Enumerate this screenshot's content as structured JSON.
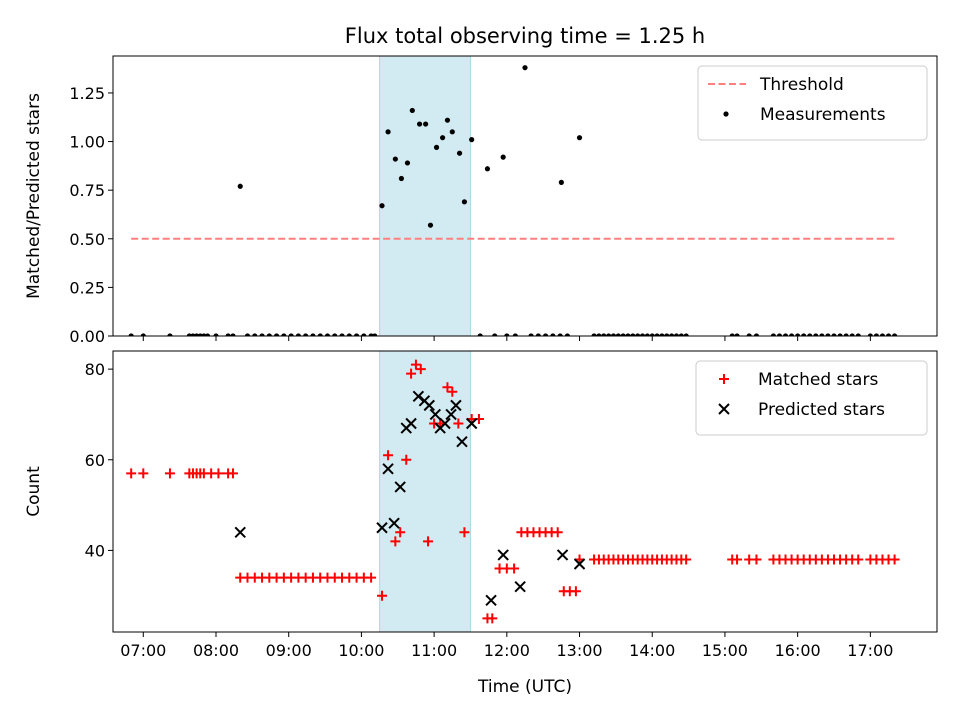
{
  "chart_data": [
    {
      "type": "scatter",
      "title": "Flux total observing time = 1.25 h",
      "xlabel": "",
      "ylabel": "Matched/Predicted stars",
      "ylim": [
        0,
        1.44
      ],
      "xlim": [
        "06:35",
        "17:55"
      ],
      "yticks": [
        0.0,
        0.25,
        0.5,
        0.75,
        1.0,
        1.25
      ],
      "ytick_labels": [
        "0.00",
        "0.25",
        "0.50",
        "0.75",
        "1.00",
        "1.25"
      ],
      "shaded_span": [
        "10:15",
        "11:30"
      ],
      "shaded_color": "#add8e6",
      "legend_position": "upper-right",
      "series": [
        {
          "name": "Threshold",
          "style": "dashed-line",
          "color": "#ff7f7f",
          "x": [
            "06:50",
            "17:20"
          ],
          "y": [
            0.5,
            0.5
          ]
        },
        {
          "name": "Measurements",
          "style": "dot",
          "color": "#000000",
          "points": [
            [
              "06:50",
              0
            ],
            [
              "07:00",
              0
            ],
            [
              "07:22",
              0
            ],
            [
              "07:38",
              0
            ],
            [
              "07:41",
              0
            ],
            [
              "07:44",
              0
            ],
            [
              "07:47",
              0
            ],
            [
              "07:50",
              0
            ],
            [
              "07:53",
              0
            ],
            [
              "08:00",
              0
            ],
            [
              "08:10",
              0
            ],
            [
              "08:14",
              0
            ],
            [
              "08:20",
              0.77
            ],
            [
              "08:26",
              0
            ],
            [
              "08:32",
              0
            ],
            [
              "08:38",
              0
            ],
            [
              "08:44",
              0
            ],
            [
              "08:50",
              0
            ],
            [
              "08:56",
              0
            ],
            [
              "09:02",
              0
            ],
            [
              "09:08",
              0
            ],
            [
              "09:14",
              0
            ],
            [
              "09:20",
              0
            ],
            [
              "09:26",
              0
            ],
            [
              "09:32",
              0
            ],
            [
              "09:38",
              0
            ],
            [
              "09:44",
              0
            ],
            [
              "09:50",
              0
            ],
            [
              "09:56",
              0
            ],
            [
              "10:02",
              0
            ],
            [
              "10:08",
              0
            ],
            [
              "10:11",
              0
            ],
            [
              "10:17",
              0.67
            ],
            [
              "10:22",
              1.05
            ],
            [
              "10:28",
              0.91
            ],
            [
              "10:33",
              0.81
            ],
            [
              "10:38",
              0.89
            ],
            [
              "10:42",
              1.16
            ],
            [
              "10:48",
              1.09
            ],
            [
              "10:53",
              1.09
            ],
            [
              "10:57",
              0.57
            ],
            [
              "11:02",
              0.97
            ],
            [
              "11:07",
              1.02
            ],
            [
              "11:11",
              1.11
            ],
            [
              "11:15",
              1.05
            ],
            [
              "11:21",
              0.94
            ],
            [
              "11:25",
              0.69
            ],
            [
              "11:31",
              1.01
            ],
            [
              "11:44",
              0.86
            ],
            [
              "11:57",
              0.92
            ],
            [
              "12:15",
              1.38
            ],
            [
              "12:45",
              0.79
            ],
            [
              "13:00",
              1.02
            ],
            [
              "11:38",
              0
            ],
            [
              "11:50",
              0
            ],
            [
              "12:00",
              0
            ],
            [
              "12:07",
              0
            ],
            [
              "12:20",
              0
            ],
            [
              "12:26",
              0
            ],
            [
              "12:32",
              0
            ],
            [
              "12:38",
              0
            ],
            [
              "12:44",
              0
            ],
            [
              "12:50",
              0
            ],
            [
              "13:12",
              0
            ],
            [
              "13:16",
              0
            ],
            [
              "13:20",
              0
            ],
            [
              "13:24",
              0
            ],
            [
              "13:28",
              0
            ],
            [
              "13:32",
              0
            ],
            [
              "13:36",
              0
            ],
            [
              "13:40",
              0
            ],
            [
              "13:44",
              0
            ],
            [
              "13:48",
              0
            ],
            [
              "13:52",
              0
            ],
            [
              "13:56",
              0
            ],
            [
              "14:00",
              0
            ],
            [
              "14:04",
              0
            ],
            [
              "14:08",
              0
            ],
            [
              "14:12",
              0
            ],
            [
              "14:16",
              0
            ],
            [
              "14:20",
              0
            ],
            [
              "14:24",
              0
            ],
            [
              "14:28",
              0
            ],
            [
              "15:06",
              0
            ],
            [
              "15:10",
              0
            ],
            [
              "15:20",
              0
            ],
            [
              "15:26",
              0
            ],
            [
              "15:40",
              0
            ],
            [
              "15:45",
              0
            ],
            [
              "15:50",
              0
            ],
            [
              "15:55",
              0
            ],
            [
              "16:00",
              0
            ],
            [
              "16:05",
              0
            ],
            [
              "16:10",
              0
            ],
            [
              "16:15",
              0
            ],
            [
              "16:20",
              0
            ],
            [
              "16:25",
              0
            ],
            [
              "16:30",
              0
            ],
            [
              "16:35",
              0
            ],
            [
              "16:40",
              0
            ],
            [
              "16:45",
              0
            ],
            [
              "16:50",
              0
            ],
            [
              "17:00",
              0
            ],
            [
              "17:05",
              0
            ],
            [
              "17:10",
              0
            ],
            [
              "17:15",
              0
            ],
            [
              "17:20",
              0
            ]
          ]
        }
      ]
    },
    {
      "type": "scatter",
      "title": "",
      "xlabel": "Time (UTC)",
      "ylabel": "Count",
      "ylim": [
        22,
        84
      ],
      "xlim": [
        "06:35",
        "17:55"
      ],
      "yticks": [
        40,
        60,
        80
      ],
      "ytick_labels": [
        "40",
        "60",
        "80"
      ],
      "xticks": [
        "07:00",
        "08:00",
        "09:00",
        "10:00",
        "11:00",
        "12:00",
        "13:00",
        "14:00",
        "15:00",
        "16:00",
        "17:00"
      ],
      "xtick_labels": [
        "07:00",
        "08:00",
        "09:00",
        "10:00",
        "11:00",
        "12:00",
        "13:00",
        "14:00",
        "15:00",
        "16:00",
        "17:00"
      ],
      "shaded_span": [
        "10:15",
        "11:30"
      ],
      "shaded_color": "#add8e6",
      "legend_position": "upper-right",
      "series": [
        {
          "name": "Matched stars",
          "style": "plus",
          "color": "#ff0000",
          "points": [
            [
              "06:50",
              57
            ],
            [
              "07:00",
              57
            ],
            [
              "07:22",
              57
            ],
            [
              "07:38",
              57
            ],
            [
              "07:41",
              57
            ],
            [
              "07:44",
              57
            ],
            [
              "07:47",
              57
            ],
            [
              "07:50",
              57
            ],
            [
              "07:56",
              57
            ],
            [
              "08:02",
              57
            ],
            [
              "08:10",
              57
            ],
            [
              "08:14",
              57
            ],
            [
              "08:20",
              34
            ],
            [
              "08:26",
              34
            ],
            [
              "08:32",
              34
            ],
            [
              "08:38",
              34
            ],
            [
              "08:44",
              34
            ],
            [
              "08:50",
              34
            ],
            [
              "08:56",
              34
            ],
            [
              "09:02",
              34
            ],
            [
              "09:08",
              34
            ],
            [
              "09:14",
              34
            ],
            [
              "09:20",
              34
            ],
            [
              "09:26",
              34
            ],
            [
              "09:32",
              34
            ],
            [
              "09:38",
              34
            ],
            [
              "09:44",
              34
            ],
            [
              "09:50",
              34
            ],
            [
              "09:56",
              34
            ],
            [
              "10:02",
              34
            ],
            [
              "10:08",
              34
            ],
            [
              "10:17",
              30
            ],
            [
              "10:22",
              61
            ],
            [
              "10:28",
              42
            ],
            [
              "10:32",
              44
            ],
            [
              "10:37",
              60
            ],
            [
              "10:41",
              79
            ],
            [
              "10:45",
              81
            ],
            [
              "10:49",
              80
            ],
            [
              "10:55",
              42
            ],
            [
              "11:00",
              68
            ],
            [
              "11:05",
              68
            ],
            [
              "11:11",
              76
            ],
            [
              "11:15",
              75
            ],
            [
              "11:20",
              68
            ],
            [
              "11:25",
              44
            ],
            [
              "11:31",
              69
            ],
            [
              "11:37",
              69
            ],
            [
              "11:44",
              25
            ],
            [
              "11:48",
              25
            ],
            [
              "11:54",
              36
            ],
            [
              "12:00",
              36
            ],
            [
              "12:06",
              36
            ],
            [
              "12:12",
              44
            ],
            [
              "12:17",
              44
            ],
            [
              "12:22",
              44
            ],
            [
              "12:27",
              44
            ],
            [
              "12:32",
              44
            ],
            [
              "12:37",
              44
            ],
            [
              "12:42",
              44
            ],
            [
              "12:47",
              31
            ],
            [
              "12:52",
              31
            ],
            [
              "12:57",
              31
            ],
            [
              "13:00",
              38
            ],
            [
              "13:12",
              38
            ],
            [
              "13:16",
              38
            ],
            [
              "13:20",
              38
            ],
            [
              "13:24",
              38
            ],
            [
              "13:28",
              38
            ],
            [
              "13:32",
              38
            ],
            [
              "13:36",
              38
            ],
            [
              "13:40",
              38
            ],
            [
              "13:44",
              38
            ],
            [
              "13:48",
              38
            ],
            [
              "13:52",
              38
            ],
            [
              "13:56",
              38
            ],
            [
              "14:00",
              38
            ],
            [
              "14:04",
              38
            ],
            [
              "14:08",
              38
            ],
            [
              "14:12",
              38
            ],
            [
              "14:16",
              38
            ],
            [
              "14:20",
              38
            ],
            [
              "14:24",
              38
            ],
            [
              "14:28",
              38
            ],
            [
              "15:06",
              38
            ],
            [
              "15:10",
              38
            ],
            [
              "15:20",
              38
            ],
            [
              "15:26",
              38
            ],
            [
              "15:40",
              38
            ],
            [
              "15:45",
              38
            ],
            [
              "15:50",
              38
            ],
            [
              "15:55",
              38
            ],
            [
              "16:00",
              38
            ],
            [
              "16:05",
              38
            ],
            [
              "16:10",
              38
            ],
            [
              "16:15",
              38
            ],
            [
              "16:20",
              38
            ],
            [
              "16:25",
              38
            ],
            [
              "16:30",
              38
            ],
            [
              "16:35",
              38
            ],
            [
              "16:40",
              38
            ],
            [
              "16:45",
              38
            ],
            [
              "16:50",
              38
            ],
            [
              "17:00",
              38
            ],
            [
              "17:05",
              38
            ],
            [
              "17:10",
              38
            ],
            [
              "17:15",
              38
            ],
            [
              "17:20",
              38
            ]
          ]
        },
        {
          "name": "Predicted stars",
          "style": "x",
          "color": "#000000",
          "points": [
            [
              "08:20",
              44
            ],
            [
              "10:17",
              45
            ],
            [
              "10:22",
              58
            ],
            [
              "10:27",
              46
            ],
            [
              "10:32",
              54
            ],
            [
              "10:37",
              67
            ],
            [
              "10:41",
              68
            ],
            [
              "10:47",
              74
            ],
            [
              "10:52",
              73
            ],
            [
              "10:56",
              72
            ],
            [
              "11:01",
              70
            ],
            [
              "11:05",
              67
            ],
            [
              "11:09",
              68
            ],
            [
              "11:14",
              70
            ],
            [
              "11:18",
              72
            ],
            [
              "11:23",
              64
            ],
            [
              "11:31",
              68
            ],
            [
              "11:47",
              29
            ],
            [
              "11:57",
              39
            ],
            [
              "12:11",
              32
            ],
            [
              "12:46",
              39
            ],
            [
              "13:00",
              37
            ]
          ]
        }
      ]
    }
  ]
}
